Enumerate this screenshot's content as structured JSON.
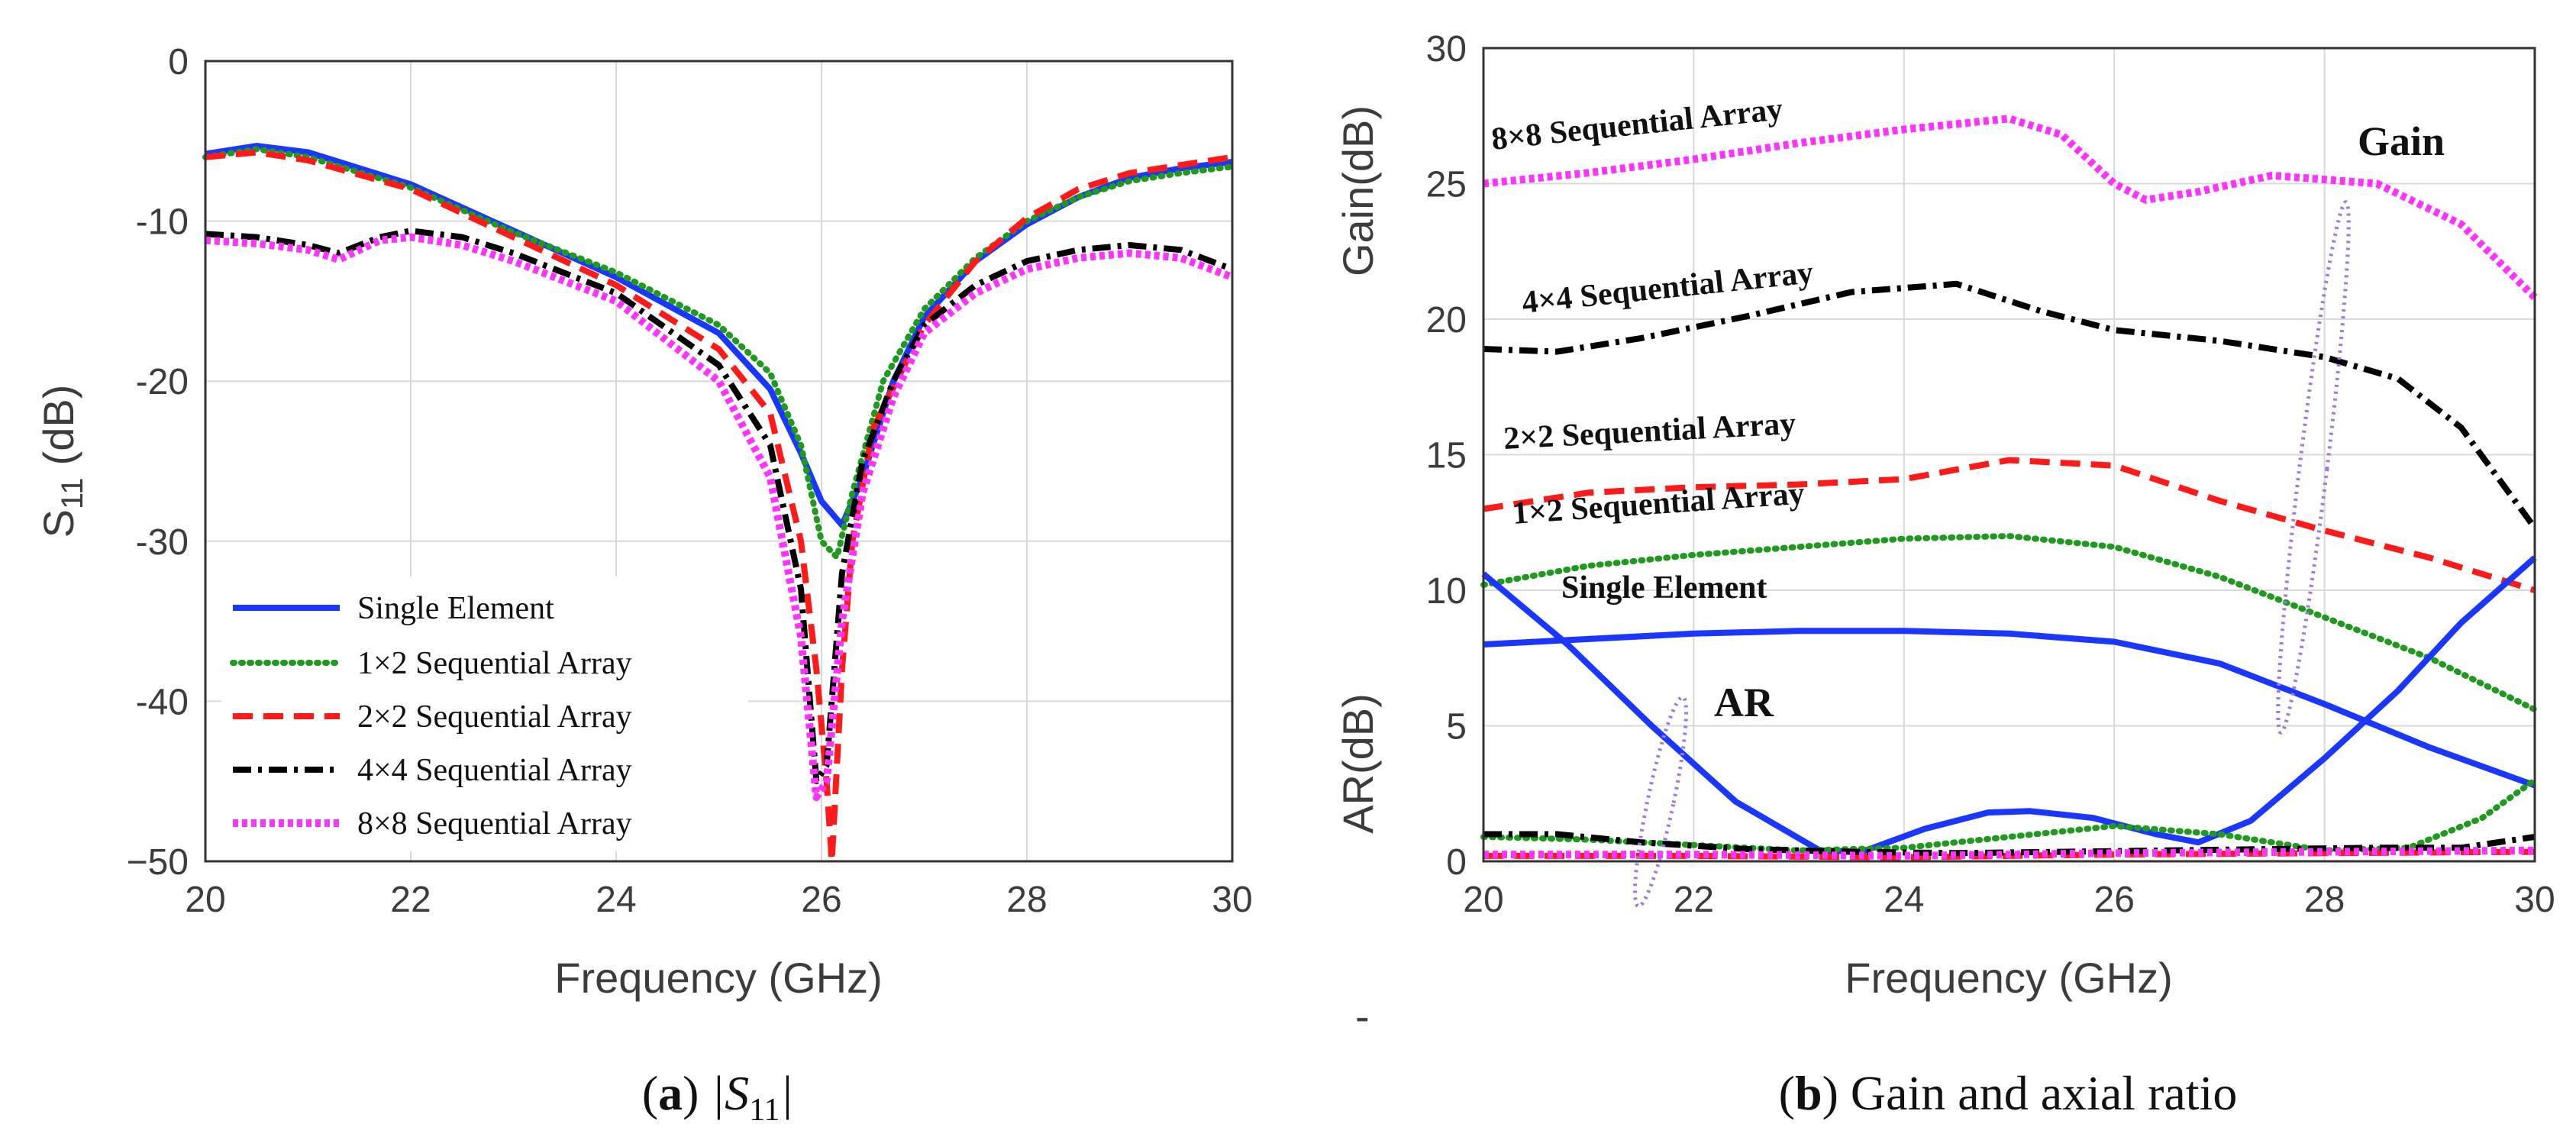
{
  "colors": {
    "single": "#1a37ff",
    "a1x2": "#1f9a1f",
    "a2x2": "#ff1a1a",
    "a4x4": "#000000",
    "a8x8": "#ff33ff",
    "ellipse": "#a07ad8",
    "grid": "#d9d9d9",
    "axis": "#333333"
  },
  "captions": {
    "a_letter": "a",
    "a_open": "(",
    "a_close": ")",
    "a_text": "|S",
    "a_sub": "11",
    "a_end": "|",
    "b_letter": "b",
    "b_open": "(",
    "b_close": ")",
    "b_text": "Gain and axial ratio"
  },
  "stray_mark": "-",
  "chart_data": [
    {
      "id": "a",
      "type": "line",
      "xlabel": "Frequency (GHz)",
      "ylabel_main": "S",
      "ylabel_sub": "11",
      "ylabel_unit": "(dB)",
      "xlim": [
        20,
        30
      ],
      "ylim": [
        -50,
        0
      ],
      "xticks": [
        20,
        22,
        24,
        26,
        28,
        30
      ],
      "yticks": [
        0,
        -10,
        -20,
        -30,
        -40,
        -50
      ],
      "ytick_labels": [
        "0",
        "-10",
        "-20",
        "-30",
        "-40",
        "−50"
      ],
      "grid": true,
      "legend_position": "bottom-left",
      "series": [
        {
          "key": "single",
          "name": "Single Element",
          "style": "solid",
          "x": [
            20,
            20.5,
            21,
            22,
            23,
            24,
            25,
            25.5,
            25.8,
            26.0,
            26.2,
            26.4,
            26.7,
            27,
            27.5,
            28,
            28.5,
            29,
            29.5,
            30
          ],
          "y": [
            -5.8,
            -5.3,
            -5.7,
            -7.7,
            -10.6,
            -13.5,
            -17.0,
            -20.5,
            -24.5,
            -27.5,
            -29.0,
            -26.0,
            -20.0,
            -16.0,
            -12.5,
            -10.2,
            -8.5,
            -7.3,
            -6.7,
            -6.3
          ]
        },
        {
          "key": "a1x2",
          "name": "1×2 Sequential Array",
          "style": "dotted",
          "x": [
            20,
            20.5,
            21,
            22,
            23,
            24,
            25,
            25.5,
            25.8,
            26.0,
            26.15,
            26.3,
            26.6,
            27,
            27.5,
            28,
            28.5,
            29,
            29.5,
            30
          ],
          "y": [
            -6.0,
            -5.5,
            -6.0,
            -7.9,
            -10.7,
            -13.2,
            -16.5,
            -19.5,
            -24.0,
            -30.0,
            -31.0,
            -27.0,
            -20.0,
            -15.5,
            -12.3,
            -10.0,
            -8.5,
            -7.5,
            -7.0,
            -6.6
          ]
        },
        {
          "key": "a2x2",
          "name": "2×2 Sequential Array",
          "style": "dashed",
          "x": [
            20,
            20.5,
            21,
            22,
            23,
            24,
            25,
            25.5,
            25.8,
            25.95,
            26.05,
            26.1,
            26.2,
            26.3,
            26.5,
            27,
            27.5,
            28,
            28.5,
            29,
            29.5,
            30
          ],
          "y": [
            -6.0,
            -5.7,
            -6.2,
            -8.0,
            -11.0,
            -14.0,
            -18.0,
            -22.0,
            -30.0,
            -38.0,
            -45.0,
            -50.0,
            -38.0,
            -30.0,
            -23.0,
            -16.5,
            -12.5,
            -9.8,
            -8.0,
            -7.0,
            -6.5,
            -6.0
          ]
        },
        {
          "key": "a4x4",
          "name": "4×4 Sequential Array",
          "style": "dashdot",
          "x": [
            20,
            20.5,
            21,
            21.3,
            21.7,
            22,
            22.5,
            23,
            24,
            25,
            25.5,
            25.8,
            25.95,
            26.05,
            26.2,
            26.4,
            26.7,
            27,
            27.5,
            28,
            28.5,
            29,
            29.5,
            30
          ],
          "y": [
            -10.8,
            -11.0,
            -11.5,
            -12.0,
            -11.0,
            -10.6,
            -11.0,
            -12.0,
            -14.5,
            -19.0,
            -24.0,
            -33.0,
            -45.0,
            -44.0,
            -32.0,
            -25.0,
            -20.0,
            -16.5,
            -14.0,
            -12.5,
            -11.8,
            -11.5,
            -11.8,
            -13.0
          ]
        },
        {
          "key": "a8x8",
          "name": "8×8 Sequential Array",
          "style": "densedot",
          "x": [
            20,
            20.5,
            21,
            21.3,
            21.7,
            22,
            22.5,
            23,
            24,
            25,
            25.5,
            25.8,
            25.95,
            26.05,
            26.2,
            26.4,
            26.7,
            27,
            27.5,
            28,
            28.5,
            29,
            29.5,
            30
          ],
          "y": [
            -11.2,
            -11.4,
            -11.8,
            -12.4,
            -11.2,
            -11.0,
            -11.5,
            -12.5,
            -15.0,
            -20.0,
            -26.0,
            -36.0,
            -46.0,
            -45.0,
            -35.0,
            -27.0,
            -21.0,
            -17.0,
            -14.5,
            -13.0,
            -12.3,
            -12.0,
            -12.3,
            -13.5
          ]
        }
      ]
    },
    {
      "id": "b",
      "type": "line",
      "xlabel": "Frequency (GHz)",
      "ylabel_top": "Gain(dB)",
      "ylabel_bottom": "AR(dB)",
      "xlim": [
        20,
        30
      ],
      "ylim": [
        0,
        30
      ],
      "xticks": [
        20,
        22,
        24,
        26,
        28,
        30
      ],
      "yticks": [
        0,
        5,
        10,
        15,
        20,
        25,
        30
      ],
      "grid": true,
      "annotations": {
        "a8x8": "8×8 Sequential Array",
        "a4x4": "4×4 Sequential Array",
        "a2x2": "2×2 Sequential Array",
        "a1x2": "1×2 Sequential Array",
        "single": "Single Element",
        "gain": "Gain",
        "ar": "AR"
      },
      "series": [
        {
          "key": "a8x8",
          "name": "8×8 Sequential Array gain",
          "style": "densedot",
          "x": [
            20,
            21,
            22,
            23,
            24,
            25,
            25.5,
            26,
            26.3,
            26.8,
            27.5,
            28.5,
            29.3,
            30
          ],
          "y": [
            25.0,
            25.4,
            25.9,
            26.5,
            27.0,
            27.4,
            26.8,
            25.0,
            24.4,
            24.7,
            25.3,
            25.0,
            23.5,
            20.8
          ]
        },
        {
          "key": "a4x4",
          "name": "4×4 Sequential Array gain",
          "style": "dashdot",
          "x": [
            20,
            20.7,
            21.5,
            22.5,
            23.5,
            24.5,
            25.3,
            26,
            27,
            28,
            28.7,
            29.3,
            30
          ],
          "y": [
            18.9,
            18.8,
            19.3,
            20.1,
            21.0,
            21.3,
            20.3,
            19.6,
            19.2,
            18.6,
            17.8,
            16.0,
            12.3
          ]
        },
        {
          "key": "a2x2",
          "name": "2×2 Sequential Array gain",
          "style": "dashed",
          "x": [
            20,
            21,
            22,
            23,
            24,
            25,
            26,
            27,
            28,
            29,
            30
          ],
          "y": [
            13.0,
            13.6,
            13.8,
            13.9,
            14.1,
            14.8,
            14.6,
            13.3,
            12.2,
            11.2,
            10.0
          ]
        },
        {
          "key": "a1x2",
          "name": "1×2 Sequential Array gain",
          "style": "dotted",
          "x": [
            20,
            21,
            22,
            23,
            24,
            25,
            26,
            27,
            28,
            29,
            30
          ],
          "y": [
            10.2,
            10.9,
            11.3,
            11.6,
            11.9,
            12.0,
            11.6,
            10.5,
            9.0,
            7.5,
            5.6
          ]
        },
        {
          "key": "single",
          "name": "Single Element gain",
          "style": "solid",
          "x": [
            20,
            21,
            22,
            23,
            24,
            25,
            26,
            27,
            28,
            29,
            30
          ],
          "y": [
            8.0,
            8.2,
            8.4,
            8.5,
            8.5,
            8.4,
            8.1,
            7.3,
            5.8,
            4.2,
            2.8
          ]
        },
        {
          "key": "single",
          "name": "Single Element AR",
          "style": "solid",
          "x": [
            20,
            20.8,
            21.6,
            22.4,
            23.2,
            23.6,
            24.2,
            24.8,
            25.2,
            25.8,
            26.4,
            26.8,
            27.3,
            28,
            28.7,
            29.3,
            30
          ],
          "y": [
            10.6,
            8.0,
            5.0,
            2.2,
            0.4,
            0.35,
            1.2,
            1.8,
            1.85,
            1.6,
            1.0,
            0.7,
            1.5,
            3.8,
            6.3,
            8.8,
            11.2
          ]
        },
        {
          "key": "a1x2",
          "name": "1×2 Sequential Array AR",
          "style": "dotted",
          "x": [
            20,
            21,
            22,
            23,
            24,
            25,
            26,
            27,
            28,
            28.8,
            29.5,
            30
          ],
          "y": [
            0.9,
            0.8,
            0.6,
            0.4,
            0.5,
            0.9,
            1.3,
            1.0,
            0.4,
            0.5,
            1.6,
            3.0
          ]
        },
        {
          "key": "a2x2",
          "name": "2×2 Sequential Array AR",
          "style": "dashed",
          "x": [
            20,
            22,
            24,
            26,
            28,
            30
          ],
          "y": [
            0.2,
            0.2,
            0.15,
            0.25,
            0.3,
            0.35
          ]
        },
        {
          "key": "a4x4",
          "name": "4×4 Sequential Array AR",
          "style": "dashdot",
          "x": [
            20,
            20.7,
            21.5,
            22.5,
            23.5,
            24.5,
            25.5,
            26.5,
            27.5,
            28.5,
            29.3,
            30
          ],
          "y": [
            1.0,
            1.0,
            0.7,
            0.45,
            0.35,
            0.3,
            0.35,
            0.4,
            0.45,
            0.5,
            0.5,
            0.9
          ]
        },
        {
          "key": "a8x8",
          "name": "8×8 Sequential Array AR",
          "style": "densedot",
          "x": [
            20,
            22,
            24,
            26,
            28,
            30
          ],
          "y": [
            0.25,
            0.25,
            0.2,
            0.3,
            0.35,
            0.4
          ]
        }
      ]
    }
  ]
}
